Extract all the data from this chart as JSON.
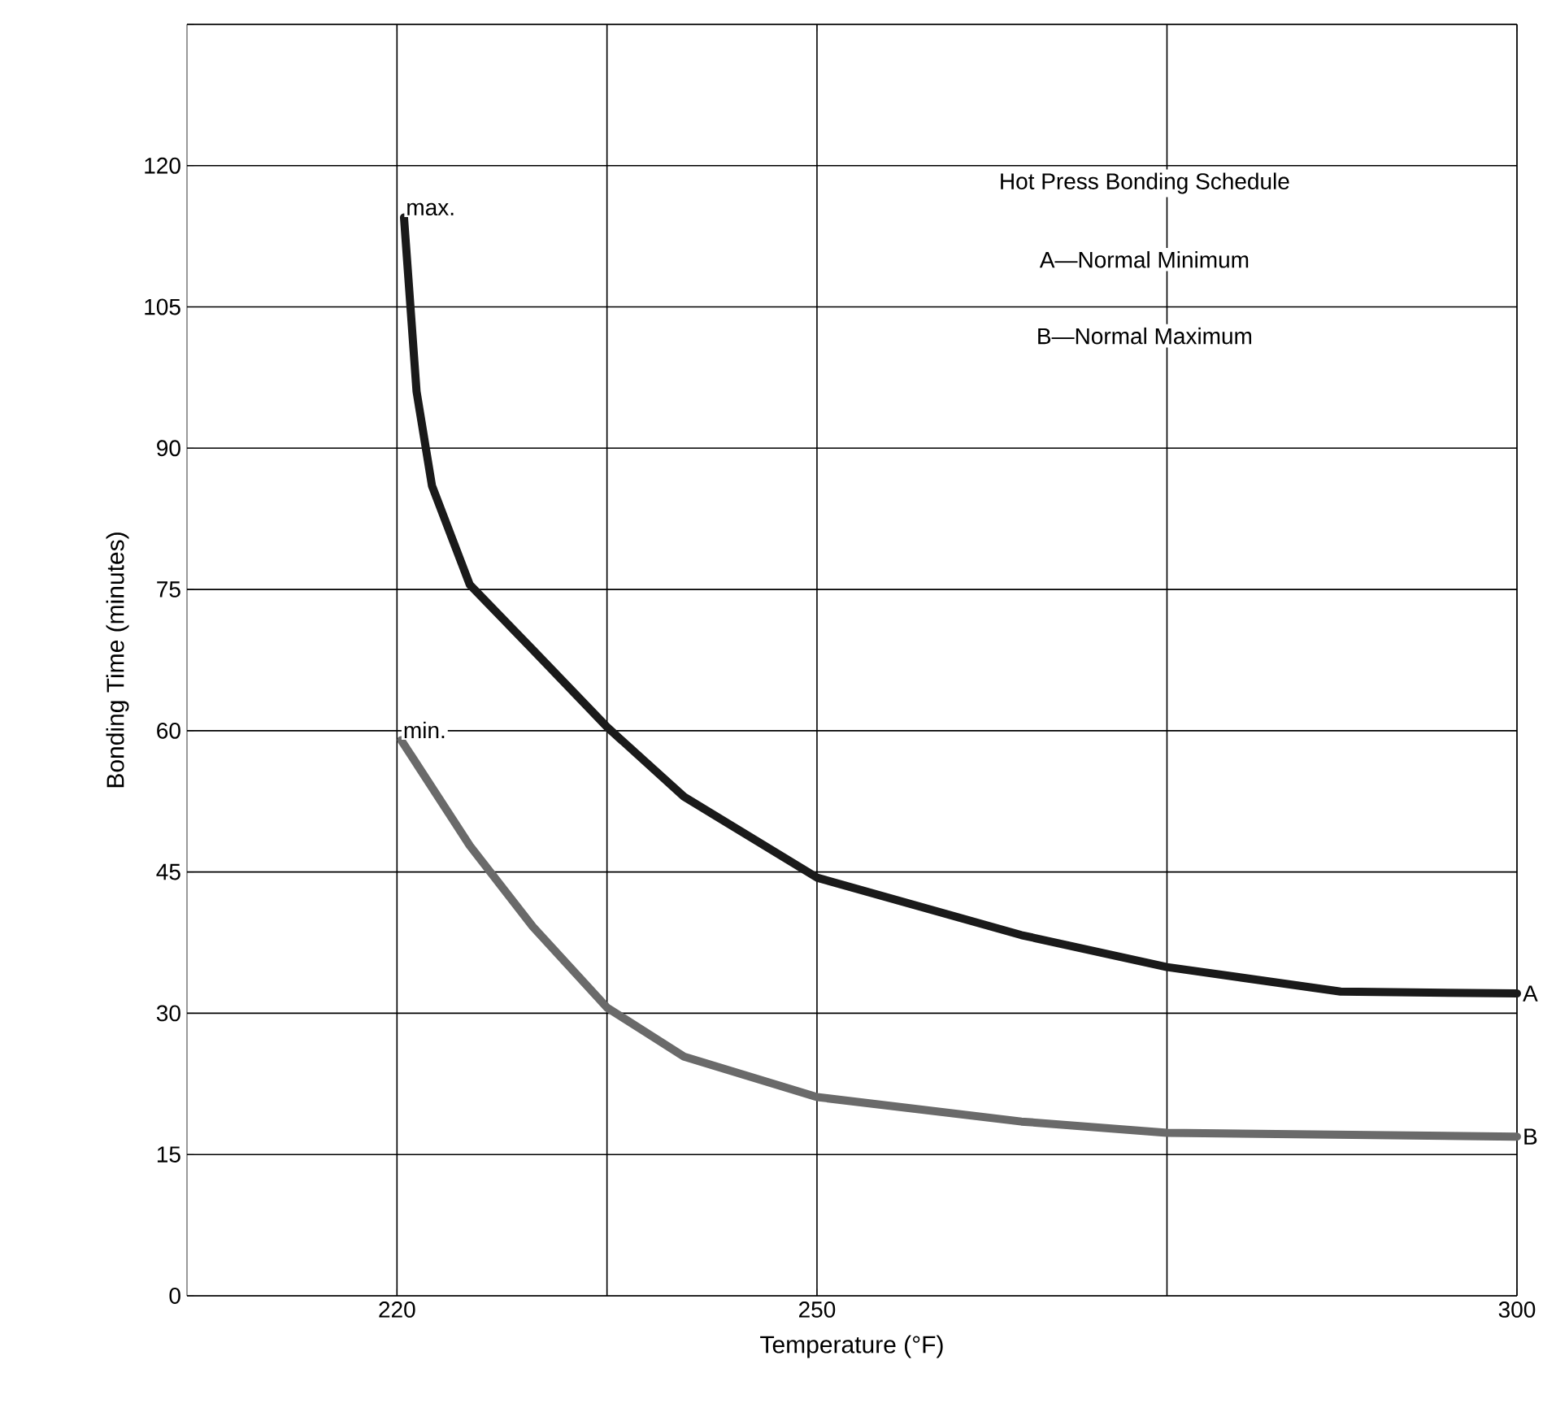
{
  "chart_data": {
    "type": "line",
    "xlabel": "Temperature (°F)",
    "ylabel": "Bonding Time (minutes)",
    "xlim": [
      205,
      300
    ],
    "ylim": [
      0,
      135
    ],
    "xticks": [
      220,
      {
        "value": 235,
        "label": null
      },
      250,
      {
        "value": 275,
        "label": null
      },
      300
    ],
    "yticks": [
      0,
      15,
      30,
      45,
      60,
      75,
      90,
      105,
      120,
      {
        "value": 135,
        "label": null
      }
    ],
    "grid": true,
    "marker": "none",
    "line_style": "solid",
    "series": [
      {
        "name": "A",
        "color": "#1a1a1a",
        "x": [
          220.5,
          221.4,
          222.5,
          225.2,
          229.7,
          235,
          240.5,
          250,
          264.6,
          275,
          287.4,
          300
        ],
        "values": [
          114.5,
          96,
          86,
          75.5,
          68.6,
          60.4,
          53,
          44.4,
          38.3,
          34.9,
          32.3,
          32.1
        ]
      },
      {
        "name": "B",
        "color": "#6a6a6a",
        "x": [
          220.3,
          225.2,
          229.7,
          235,
          240.5,
          250,
          264.6,
          275,
          300
        ],
        "values": [
          59,
          47.8,
          39.2,
          30.6,
          25.4,
          21.1,
          18.5,
          17.3,
          16.9
        ]
      }
    ],
    "annotations": [
      {
        "text": "max.",
        "x": 220.5,
        "y": 114.5
      },
      {
        "text": "min.",
        "x": 220.3,
        "y": 59
      },
      "Hot Press Bonding Schedule",
      "A—Normal Minimum",
      "B—Normal Maximum"
    ]
  }
}
